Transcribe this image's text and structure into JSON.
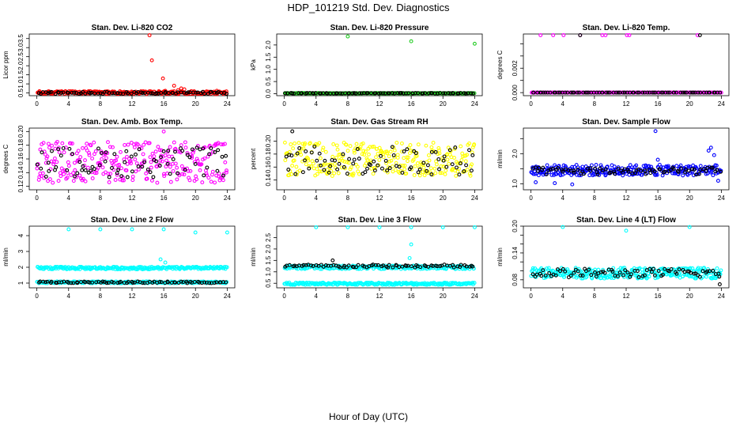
{
  "title": "HDP_101219  Std. Dev. Diagnostics",
  "xlabel": "Hour of Day (UTC)",
  "colors": {
    "black": "#000000",
    "red": "#ff0000",
    "green": "#22cc22",
    "magenta": "#ff00ff",
    "yellow": "#ffff00",
    "blue": "#0000ff",
    "cyan": "#00ffff"
  },
  "chart_data": [
    {
      "type": "scatter",
      "title": "Stan. Dev. Li-820 CO2",
      "ylabel": "Licor ppm",
      "xlim": [
        0,
        24
      ],
      "xticks": [
        "0",
        "4",
        "8",
        "12",
        "16",
        "20",
        "24"
      ],
      "ylim": [
        0.35,
        3.75
      ],
      "yticks": [
        0.5,
        1.0,
        1.5,
        2.0,
        2.5,
        3.0,
        3.5
      ],
      "ytick_labels": [
        "0.5",
        "1.0",
        "1.5",
        "2.0",
        "2.5",
        "3.0",
        "3.5"
      ],
      "series": [
        {
          "name": "main",
          "color": "red",
          "base": 0.52,
          "spread": 0.08,
          "count": 240,
          "outliers": [
            [
              14.2,
              3.68
            ],
            [
              14.5,
              2.3
            ],
            [
              15.9,
              1.3
            ],
            [
              17.3,
              0.9
            ],
            [
              18.2,
              0.75
            ],
            [
              18.6,
              0.7
            ],
            [
              16.2,
              0.62
            ],
            [
              17.8,
              0.65
            ],
            [
              22.7,
              0.62
            ]
          ]
        },
        {
          "name": "secondary",
          "color": "black",
          "base": 0.5,
          "spread": 0.06,
          "count": 80,
          "outliers": []
        }
      ]
    },
    {
      "type": "scatter",
      "title": "Stan. Dev. Li-820 Pressure",
      "ylabel": "kPa",
      "xlim": [
        0,
        24
      ],
      "xticks": [
        "0",
        "4",
        "8",
        "12",
        "16",
        "20",
        "24"
      ],
      "ylim": [
        -0.08,
        2.45
      ],
      "yticks": [
        0.0,
        0.5,
        1.0,
        1.5,
        2.0
      ],
      "ytick_labels": [
        "0.0",
        "0.5",
        "1.0",
        "1.5",
        "2.0"
      ],
      "series": [
        {
          "name": "main",
          "color": "green",
          "base": 0.02,
          "spread": 0.01,
          "count": 240,
          "outliers": [
            [
              8.0,
              2.35
            ],
            [
              16.0,
              2.15
            ],
            [
              24.0,
              2.05
            ],
            [
              0.2,
              0.02
            ]
          ]
        },
        {
          "name": "secondary",
          "color": "black",
          "base": 0.02,
          "spread": 0.01,
          "count": 80,
          "outliers": []
        }
      ]
    },
    {
      "type": "scatter",
      "title": "Stan. Dev. Li-820 Temp.",
      "ylabel": "degrees C",
      "xlim": [
        0,
        24
      ],
      "xticks": [
        "0",
        "4",
        "8",
        "12",
        "16",
        "20",
        "24"
      ],
      "ylim": [
        -0.00025,
        0.0048
      ],
      "yticks": [
        0.0,
        0.001,
        0.002,
        0.003,
        0.004
      ],
      "ytick_labels": [
        "0.000",
        "",
        "0.002",
        "",
        ""
      ],
      "series": [
        {
          "name": "main",
          "color": "magenta",
          "base": 0.0,
          "spread": 0.0,
          "count": 240,
          "outliers": [
            [
              1.2,
              0.0047
            ],
            [
              2.8,
              0.0047
            ],
            [
              4.1,
              0.0047
            ],
            [
              6.2,
              0.0047
            ],
            [
              9.0,
              0.0047
            ],
            [
              9.4,
              0.0047
            ],
            [
              12.1,
              0.0047
            ],
            [
              12.4,
              0.0047
            ],
            [
              21.0,
              0.0047
            ]
          ]
        },
        {
          "name": "secondary",
          "color": "black",
          "base": 0.0,
          "spread": 0.0,
          "count": 80,
          "outliers": [
            [
              6.2,
              0.0047
            ],
            [
              21.3,
              0.0047
            ]
          ]
        }
      ]
    },
    {
      "type": "scatter",
      "title": "Stan. Dev. Amb. Box Temp.",
      "ylabel": "degrees C",
      "xlim": [
        0,
        24
      ],
      "xticks": [
        "0",
        "4",
        "8",
        "12",
        "16",
        "20",
        "24"
      ],
      "ylim": [
        0.115,
        0.205
      ],
      "yticks": [
        0.12,
        0.14,
        0.16,
        0.18,
        0.2
      ],
      "ytick_labels": [
        "0.12",
        "0.14",
        "0.16",
        "0.18",
        "0.20"
      ],
      "series": [
        {
          "name": "main",
          "color": "magenta",
          "base": 0.155,
          "spread": 0.03,
          "count": 280,
          "outliers": [
            [
              16.0,
              0.2
            ]
          ]
        },
        {
          "name": "secondary",
          "color": "black",
          "base": 0.155,
          "spread": 0.022,
          "count": 80,
          "outliers": []
        }
      ]
    },
    {
      "type": "scatter",
      "title": "Stan. Dev. Gas Stream RH",
      "ylabel": "percent",
      "xlim": [
        0,
        24
      ],
      "xticks": [
        "0",
        "4",
        "8",
        "12",
        "16",
        "20",
        "24"
      ],
      "ylim": [
        0.125,
        0.22
      ],
      "yticks": [
        0.14,
        0.16,
        0.18,
        0.2
      ],
      "ytick_labels": [
        "0.14",
        "0.16",
        "0.18",
        "0.20"
      ],
      "series": [
        {
          "name": "main",
          "color": "yellow",
          "base": 0.172,
          "spread": 0.026,
          "count": 280,
          "outliers": []
        },
        {
          "name": "secondary",
          "color": "black",
          "base": 0.17,
          "spread": 0.022,
          "count": 80,
          "outliers": [
            [
              1.0,
              0.215
            ]
          ]
        }
      ]
    },
    {
      "type": "scatter",
      "title": "Stan. Dev. Sample Flow",
      "ylabel": "ml/min",
      "xlim": [
        0,
        24
      ],
      "xticks": [
        "0",
        "4",
        "8",
        "12",
        "16",
        "20",
        "24"
      ],
      "ylim": [
        0.8,
        2.85
      ],
      "yticks": [
        1.0,
        1.5,
        2.0,
        2.5
      ],
      "ytick_labels": [
        "1.0",
        "",
        "2.0",
        ""
      ],
      "series": [
        {
          "name": "main",
          "color": "blue",
          "base": 1.45,
          "spread": 0.18,
          "count": 280,
          "outliers": [
            [
              15.7,
              2.75
            ],
            [
              22.4,
              2.1
            ],
            [
              22.7,
              2.2
            ],
            [
              23.1,
              1.95
            ],
            [
              16.0,
              1.8
            ],
            [
              0.6,
              1.05
            ],
            [
              3.0,
              1.02
            ],
            [
              5.2,
              0.98
            ],
            [
              23.6,
              1.1
            ]
          ]
        },
        {
          "name": "secondary",
          "color": "black",
          "base": 1.42,
          "spread": 0.12,
          "count": 80,
          "outliers": []
        }
      ]
    },
    {
      "type": "scatter",
      "title": "Stan. Dev. Line 2 Flow",
      "ylabel": "ml/min",
      "xlim": [
        0,
        24
      ],
      "xticks": [
        "0",
        "4",
        "8",
        "12",
        "16",
        "20",
        "24"
      ],
      "ylim": [
        0.7,
        4.6
      ],
      "yticks": [
        1,
        2,
        3,
        4
      ],
      "ytick_labels": [
        "1",
        "2",
        "3",
        "4"
      ],
      "series": [
        {
          "name": "upper",
          "color": "cyan",
          "base": 1.95,
          "spread": 0.08,
          "count": 240,
          "outliers": [
            [
              4.0,
              4.4
            ],
            [
              8.0,
              4.4
            ],
            [
              12.0,
              4.4
            ],
            [
              16.0,
              4.4
            ],
            [
              20.0,
              4.2
            ],
            [
              24.0,
              4.2
            ],
            [
              15.6,
              2.5
            ],
            [
              16.2,
              2.3
            ]
          ]
        },
        {
          "name": "lower",
          "color": "cyan",
          "base": 1.05,
          "spread": 0.06,
          "count": 240,
          "outliers": []
        },
        {
          "name": "secondary",
          "color": "black",
          "base": 1.05,
          "spread": 0.05,
          "count": 80,
          "outliers": []
        }
      ]
    },
    {
      "type": "scatter",
      "title": "Stan. Dev. Line 3 Flow",
      "ylabel": "ml/min",
      "xlim": [
        0,
        24
      ],
      "xticks": [
        "0",
        "4",
        "8",
        "12",
        "16",
        "20",
        "24"
      ],
      "ylim": [
        0.3,
        3.0
      ],
      "yticks": [
        0.5,
        1.0,
        1.5,
        2.0,
        2.5
      ],
      "ytick_labels": [
        "0.5",
        "1.0",
        "1.5",
        "2.0",
        "2.5"
      ],
      "series": [
        {
          "name": "upper",
          "color": "cyan",
          "base": 1.2,
          "spread": 0.08,
          "count": 240,
          "outliers": [
            [
              4.0,
              2.95
            ],
            [
              8.0,
              2.95
            ],
            [
              12.0,
              2.95
            ],
            [
              16.0,
              2.95
            ],
            [
              20.0,
              2.95
            ],
            [
              24.0,
              2.95
            ],
            [
              16.0,
              2.2
            ],
            [
              15.8,
              1.6
            ]
          ]
        },
        {
          "name": "lower",
          "color": "cyan",
          "base": 0.48,
          "spread": 0.05,
          "count": 240,
          "outliers": []
        },
        {
          "name": "secondary",
          "color": "black",
          "base": 1.25,
          "spread": 0.07,
          "count": 80,
          "outliers": [
            [
              6.1,
              1.5
            ]
          ]
        }
      ]
    },
    {
      "type": "scatter",
      "title": "Stan. Dev. Line 4 (LT) Flow",
      "ylabel": "ml/min",
      "xlim": [
        0,
        24
      ],
      "xticks": [
        "0",
        "4",
        "8",
        "12",
        "16",
        "20",
        "24"
      ],
      "ylim": [
        0.062,
        0.2
      ],
      "yticks": [
        0.08,
        0.1,
        0.12,
        0.14,
        0.16,
        0.18,
        0.2
      ],
      "ytick_labels": [
        "0.08",
        "",
        "",
        "0.14",
        "",
        "",
        "0.20"
      ],
      "series": [
        {
          "name": "main",
          "color": "cyan",
          "base": 0.095,
          "spread": 0.012,
          "count": 300,
          "outliers": [
            [
              4.0,
              0.198
            ],
            [
              20.0,
              0.198
            ],
            [
              12.0,
              0.19
            ]
          ]
        },
        {
          "name": "secondary",
          "color": "black",
          "base": 0.095,
          "spread": 0.01,
          "count": 80,
          "outliers": [
            [
              23.8,
              0.07
            ]
          ]
        }
      ]
    }
  ]
}
